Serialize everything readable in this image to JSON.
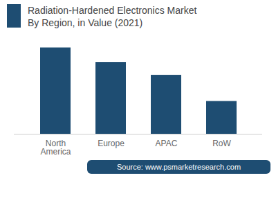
{
  "chart_data": {
    "type": "bar",
    "title": "Radiation-Hardened Electronics Market",
    "subtitle": "By Region, in Value (2021)",
    "categories": [
      "North\nAmerica",
      "Europe",
      "APAC",
      "RoW"
    ],
    "values": [
      100,
      83,
      68,
      38
    ],
    "color": "#1e4d72",
    "ylim": [
      0,
      115
    ],
    "tick_labels": "x",
    "grid": false,
    "annotations": [
      "Source: www.psmarketresearch.com"
    ]
  }
}
